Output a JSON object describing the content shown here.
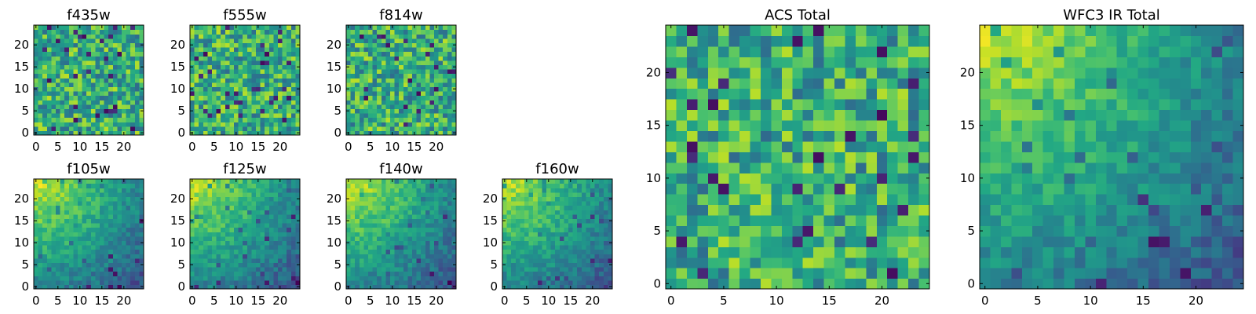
{
  "chart_data": [
    {
      "type": "heatmap",
      "title": "f435w",
      "xticks": [
        "0",
        "5",
        "10",
        "15",
        "20"
      ],
      "yticks": [
        "0",
        "5",
        "10",
        "15",
        "20"
      ],
      "xlim": [
        -0.5,
        24.5
      ],
      "ylim": [
        -0.5,
        24.5
      ],
      "grid_size": [
        25,
        25
      ],
      "colormap": "viridis",
      "pattern": "noise"
    },
    {
      "type": "heatmap",
      "title": "f555w",
      "xticks": [
        "0",
        "5",
        "10",
        "15",
        "20"
      ],
      "yticks": [
        "0",
        "5",
        "10",
        "15",
        "20"
      ],
      "xlim": [
        -0.5,
        24.5
      ],
      "ylim": [
        -0.5,
        24.5
      ],
      "grid_size": [
        25,
        25
      ],
      "colormap": "viridis",
      "pattern": "noise"
    },
    {
      "type": "heatmap",
      "title": "f814w",
      "xticks": [
        "0",
        "5",
        "10",
        "15",
        "20"
      ],
      "yticks": [
        "0",
        "5",
        "10",
        "15",
        "20"
      ],
      "xlim": [
        -0.5,
        24.5
      ],
      "ylim": [
        -0.5,
        24.5
      ],
      "grid_size": [
        25,
        25
      ],
      "colormap": "viridis",
      "pattern": "noise"
    },
    {
      "type": "heatmap",
      "title": "f105w",
      "xticks": [
        "0",
        "5",
        "10",
        "15",
        "20"
      ],
      "yticks": [
        "0",
        "5",
        "10",
        "15",
        "20"
      ],
      "xlim": [
        -0.5,
        24.5
      ],
      "ylim": [
        -0.5,
        24.5
      ],
      "grid_size": [
        25,
        25
      ],
      "colormap": "viridis",
      "pattern": "gradient-bright-top-left"
    },
    {
      "type": "heatmap",
      "title": "f125w",
      "xticks": [
        "0",
        "5",
        "10",
        "15",
        "20"
      ],
      "yticks": [
        "0",
        "5",
        "10",
        "15",
        "20"
      ],
      "xlim": [
        -0.5,
        24.5
      ],
      "ylim": [
        -0.5,
        24.5
      ],
      "grid_size": [
        25,
        25
      ],
      "colormap": "viridis",
      "pattern": "gradient-bright-top-left"
    },
    {
      "type": "heatmap",
      "title": "f140w",
      "xticks": [
        "0",
        "5",
        "10",
        "15",
        "20"
      ],
      "yticks": [
        "0",
        "5",
        "10",
        "15",
        "20"
      ],
      "xlim": [
        -0.5,
        24.5
      ],
      "ylim": [
        -0.5,
        24.5
      ],
      "grid_size": [
        25,
        25
      ],
      "colormap": "viridis",
      "pattern": "gradient-bright-top-left"
    },
    {
      "type": "heatmap",
      "title": "f160w",
      "xticks": [
        "0",
        "5",
        "10",
        "15",
        "20"
      ],
      "yticks": [
        "0",
        "5",
        "10",
        "15",
        "20"
      ],
      "xlim": [
        -0.5,
        24.5
      ],
      "ylim": [
        -0.5,
        24.5
      ],
      "grid_size": [
        25,
        25
      ],
      "colormap": "viridis",
      "pattern": "gradient-bright-top-left"
    },
    {
      "type": "heatmap",
      "title": "ACS Total",
      "xticks": [
        "0",
        "5",
        "10",
        "15",
        "20"
      ],
      "yticks": [
        "0",
        "5",
        "10",
        "15",
        "20"
      ],
      "xlim": [
        -0.5,
        24.5
      ],
      "ylim": [
        -0.5,
        24.5
      ],
      "grid_size": [
        25,
        25
      ],
      "colormap": "viridis",
      "pattern": "noise"
    },
    {
      "type": "heatmap",
      "title": "WFC3 IR Total",
      "xticks": [
        "0",
        "5",
        "10",
        "15",
        "20"
      ],
      "yticks": [
        "0",
        "5",
        "10",
        "15",
        "20"
      ],
      "xlim": [
        -0.5,
        24.5
      ],
      "ylim": [
        -0.5,
        24.5
      ],
      "grid_size": [
        25,
        25
      ],
      "colormap": "viridis",
      "pattern": "gradient-bright-top-left"
    }
  ]
}
